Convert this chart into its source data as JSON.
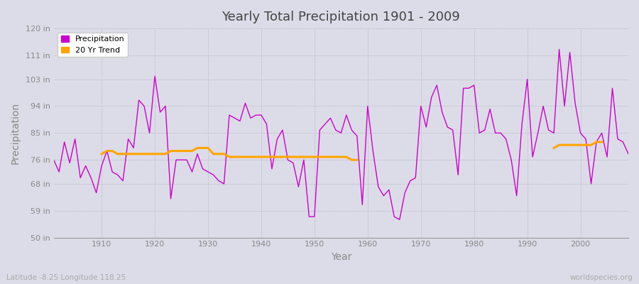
{
  "title": "Yearly Total Precipitation 1901 - 2009",
  "xlabel": "Year",
  "ylabel": "Precipitation",
  "subtitle": "Latitude -8.25 Longitude 118.25",
  "watermark": "worldspecies.org",
  "bg_color": "#dcdce8",
  "plot_bg_color": "#dcdce8",
  "line_color": "#cc00cc",
  "trend_color": "#ffa500",
  "ylim": [
    50,
    120
  ],
  "yticks": [
    50,
    59,
    68,
    76,
    85,
    94,
    103,
    111,
    120
  ],
  "xlim": [
    1901,
    2009
  ],
  "xticks": [
    1910,
    1920,
    1930,
    1940,
    1950,
    1960,
    1970,
    1980,
    1990,
    2000
  ],
  "years": [
    1901,
    1902,
    1903,
    1904,
    1905,
    1906,
    1907,
    1908,
    1909,
    1910,
    1911,
    1912,
    1913,
    1914,
    1915,
    1916,
    1917,
    1918,
    1919,
    1920,
    1921,
    1922,
    1923,
    1924,
    1925,
    1926,
    1927,
    1928,
    1929,
    1930,
    1931,
    1932,
    1933,
    1934,
    1935,
    1936,
    1937,
    1938,
    1939,
    1940,
    1941,
    1942,
    1943,
    1944,
    1945,
    1946,
    1947,
    1948,
    1949,
    1950,
    1951,
    1952,
    1953,
    1954,
    1955,
    1956,
    1957,
    1958,
    1959,
    1960,
    1961,
    1962,
    1963,
    1964,
    1965,
    1966,
    1967,
    1968,
    1969,
    1970,
    1971,
    1972,
    1973,
    1974,
    1975,
    1976,
    1977,
    1978,
    1979,
    1980,
    1981,
    1982,
    1983,
    1984,
    1985,
    1986,
    1987,
    1988,
    1989,
    1990,
    1991,
    1992,
    1993,
    1994,
    1995,
    1996,
    1997,
    1998,
    1999,
    2000,
    2001,
    2002,
    2003,
    2004,
    2005,
    2006,
    2007,
    2008,
    2009
  ],
  "precip": [
    76,
    72,
    82,
    75,
    83,
    70,
    74,
    70,
    65,
    74,
    79,
    72,
    71,
    69,
    83,
    80,
    96,
    94,
    85,
    104,
    92,
    94,
    63,
    76,
    76,
    76,
    72,
    78,
    73,
    72,
    71,
    69,
    68,
    91,
    90,
    89,
    95,
    90,
    91,
    91,
    88,
    73,
    83,
    86,
    76,
    75,
    67,
    76,
    57,
    57,
    86,
    88,
    90,
    86,
    85,
    91,
    86,
    84,
    61,
    94,
    79,
    67,
    64,
    66,
    57,
    56,
    65,
    69,
    70,
    94,
    87,
    97,
    101,
    92,
    87,
    86,
    71,
    100,
    100,
    101,
    85,
    86,
    93,
    85,
    85,
    83,
    76,
    64,
    88,
    103,
    77,
    85,
    94,
    86,
    85,
    113,
    94,
    112,
    95,
    85,
    83,
    68,
    82,
    85,
    77,
    100,
    83,
    82,
    78
  ],
  "trend": [
    null,
    null,
    null,
    null,
    null,
    null,
    null,
    null,
    null,
    78,
    79,
    79,
    78,
    78,
    78,
    78,
    78,
    78,
    78,
    78,
    78,
    78,
    79,
    79,
    79,
    79,
    79,
    80,
    80,
    80,
    78,
    78,
    78,
    77,
    77,
    77,
    77,
    77,
    77,
    77,
    77,
    77,
    77,
    77,
    77,
    77,
    77,
    77,
    77,
    77,
    77,
    77,
    77,
    77,
    77,
    77,
    76,
    76,
    null,
    null,
    null,
    null,
    null,
    null,
    null,
    null,
    null,
    null,
    null,
    null,
    null,
    null,
    null,
    null,
    null,
    null,
    null,
    null,
    null,
    null,
    null,
    null,
    null,
    null,
    null,
    null,
    null,
    null,
    null,
    null,
    null,
    null,
    null,
    null,
    80,
    81,
    81,
    81,
    81,
    81,
    81,
    81,
    82,
    82,
    null,
    null,
    null,
    null,
    null
  ]
}
